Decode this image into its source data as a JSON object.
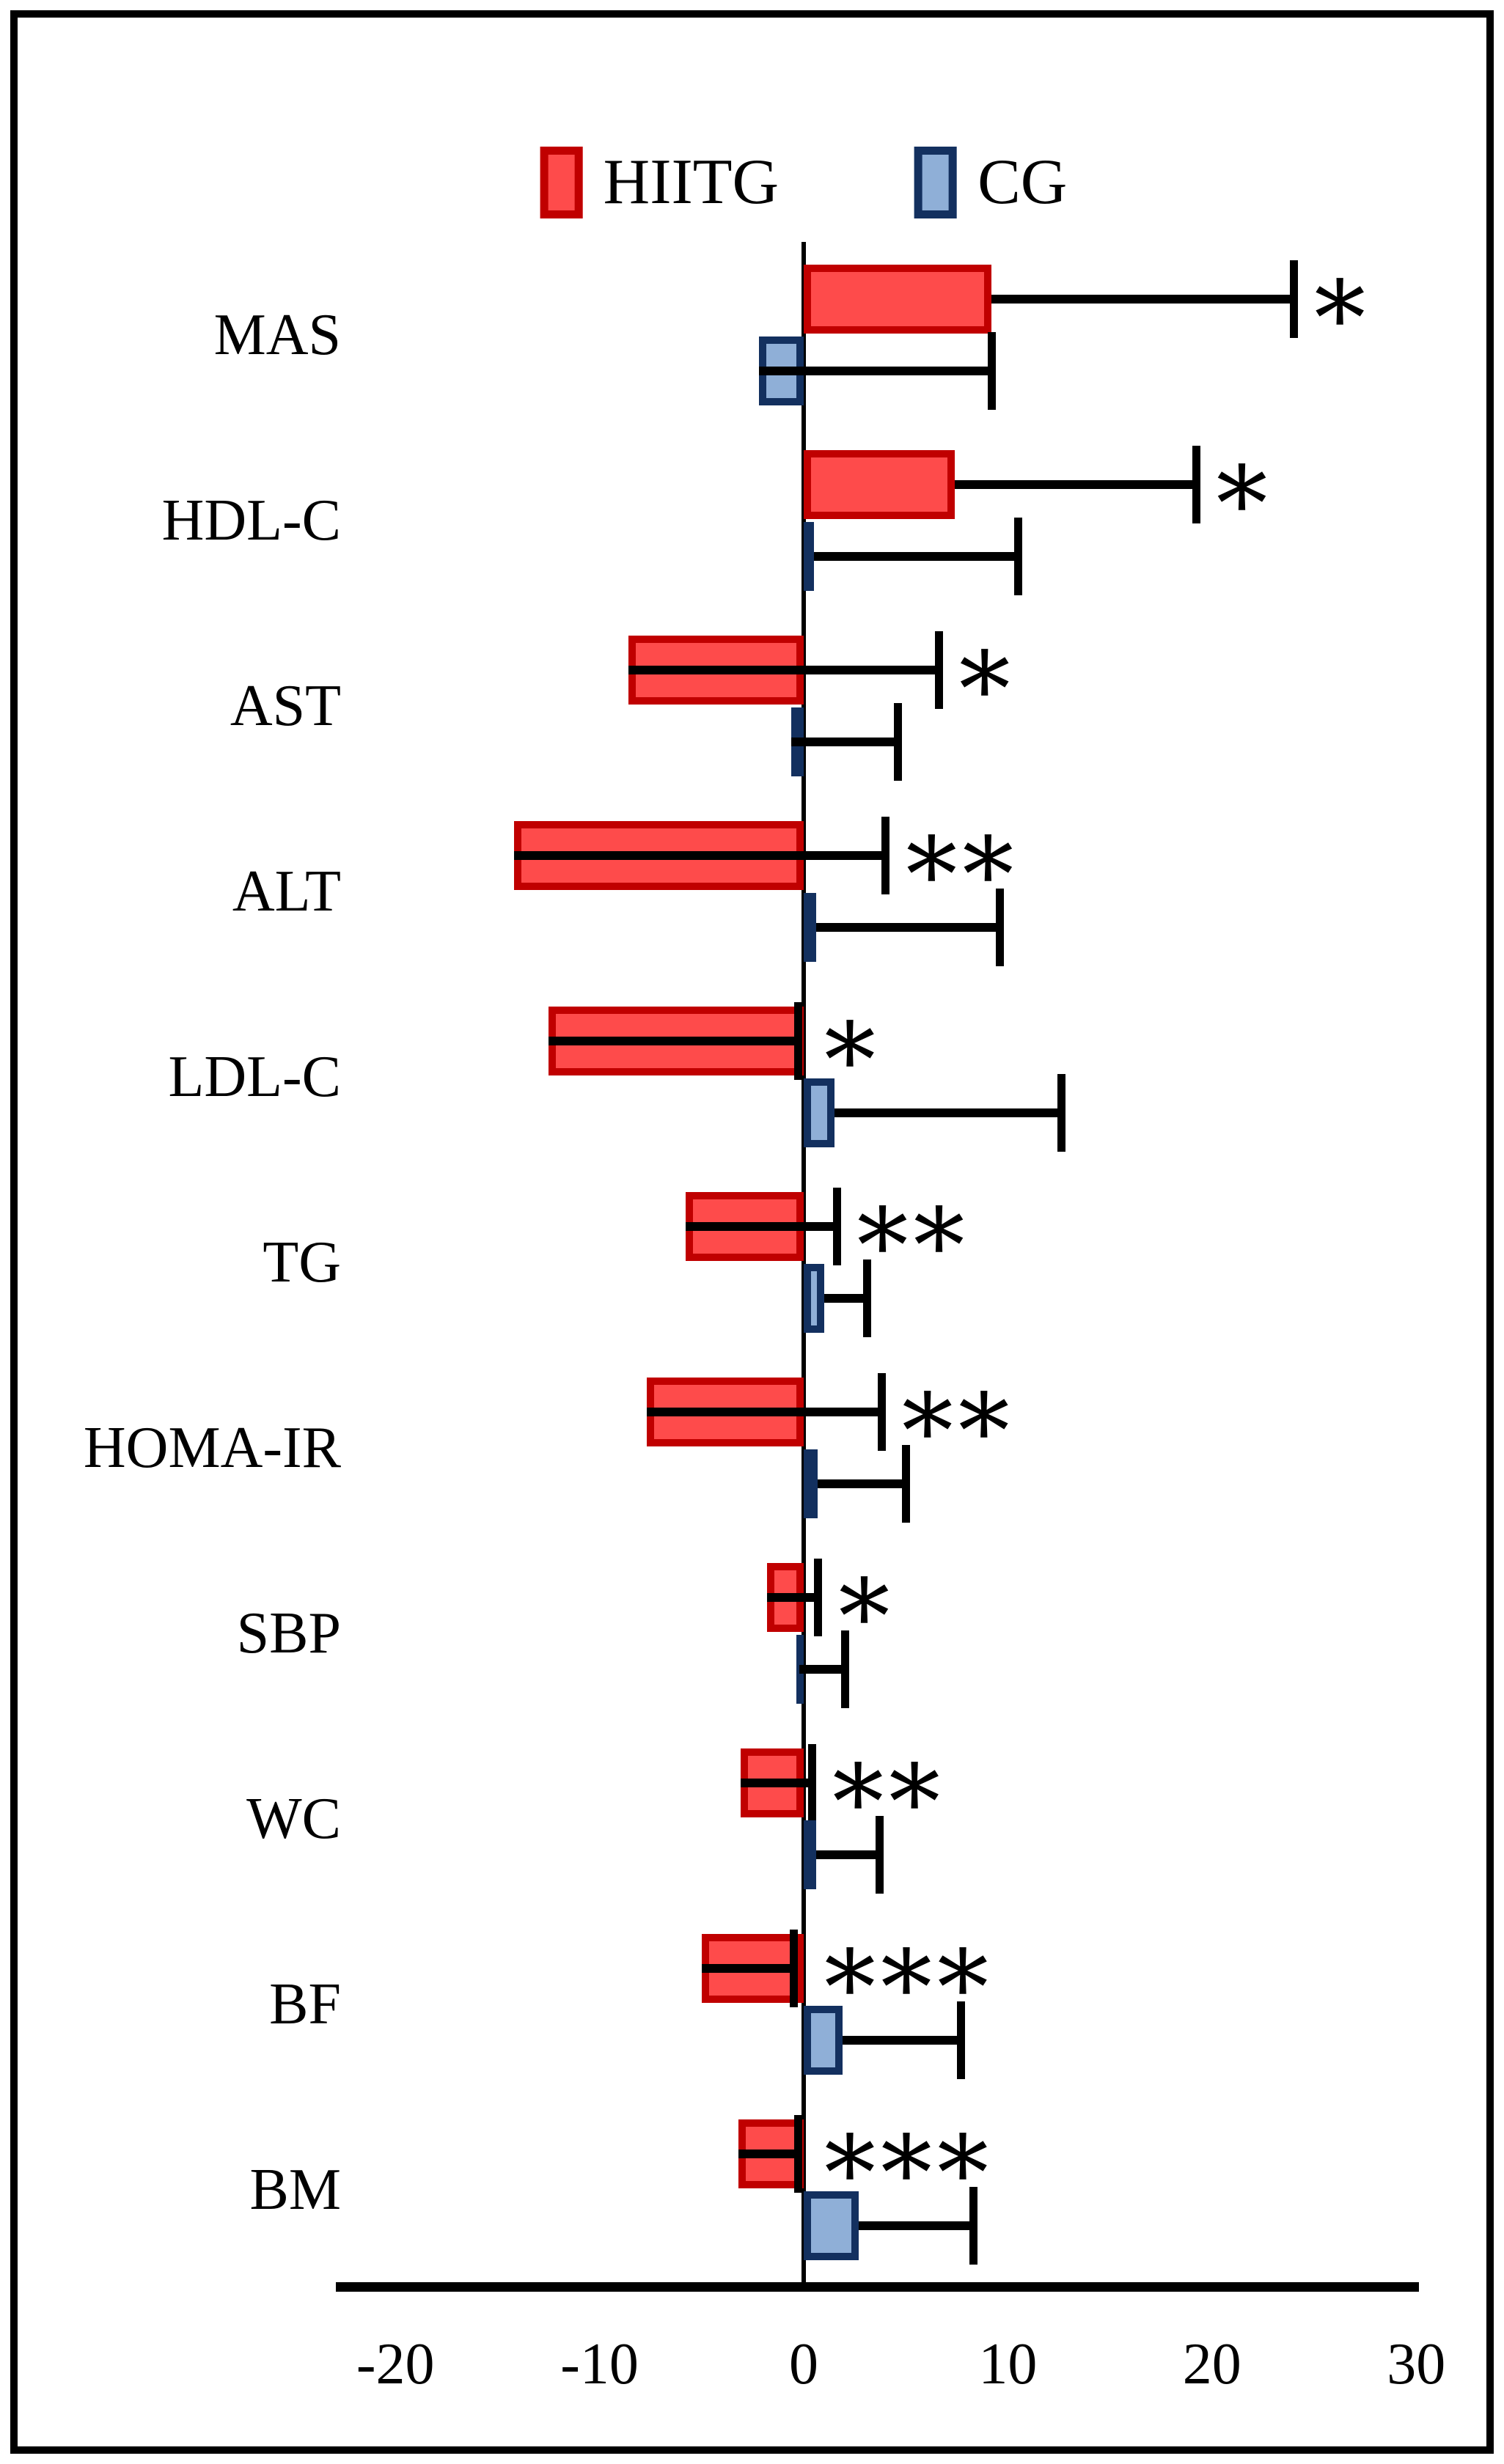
{
  "figure": {
    "background": "#ffffff",
    "frame_color": "#000000"
  },
  "legend": {
    "items": [
      {
        "label": "HIITG",
        "fill": "#FE4B4B",
        "border": "#C00000"
      },
      {
        "label": "CG",
        "fill": "#8FAFD7",
        "border": "#13305F"
      }
    ]
  },
  "chart_data": {
    "type": "bar",
    "orientation": "horizontal",
    "title": "",
    "xlabel": "",
    "ylabel": "",
    "grid": false,
    "legend_position": "top",
    "xlim": [
      -22.5,
      30
    ],
    "x_ticks": [
      -20,
      -10,
      0,
      10,
      20,
      30
    ],
    "x_tick_labels": [
      "-20",
      "-10",
      "0",
      "10",
      "20",
      "30"
    ],
    "categories": [
      "MAS",
      "HDL-C",
      "AST",
      "ALT",
      "LDL-C",
      "TG",
      "HOMA-IR",
      "SBP",
      "WC",
      "BF",
      "BM"
    ],
    "series": [
      {
        "name": "HIITG",
        "fill": "#FE4B4B",
        "border": "#C00000",
        "values": [
          9.2,
          7.4,
          -8.6,
          -14.2,
          -12.5,
          -5.8,
          -7.7,
          -1.8,
          -3.1,
          -5.0,
          -3.2
        ],
        "whisker_ends": [
          24.0,
          19.2,
          6.6,
          4.0,
          -0.3,
          1.6,
          3.8,
          0.7,
          0.4,
          -0.5,
          -0.3
        ]
      },
      {
        "name": "CG",
        "fill": "#8FAFD7",
        "border": "#13305F",
        "values": [
          -2.2,
          0.5,
          -0.6,
          0.6,
          1.5,
          1.0,
          0.7,
          -0.2,
          0.6,
          1.9,
          2.7
        ],
        "whisker_ends": [
          9.2,
          10.5,
          4.6,
          9.6,
          12.6,
          3.1,
          5.0,
          2.0,
          3.7,
          7.7,
          8.3
        ]
      }
    ],
    "significance": [
      "*",
      "*",
      "*",
      "**",
      "*",
      "**",
      "**",
      "*",
      "**",
      "***",
      "***"
    ]
  }
}
